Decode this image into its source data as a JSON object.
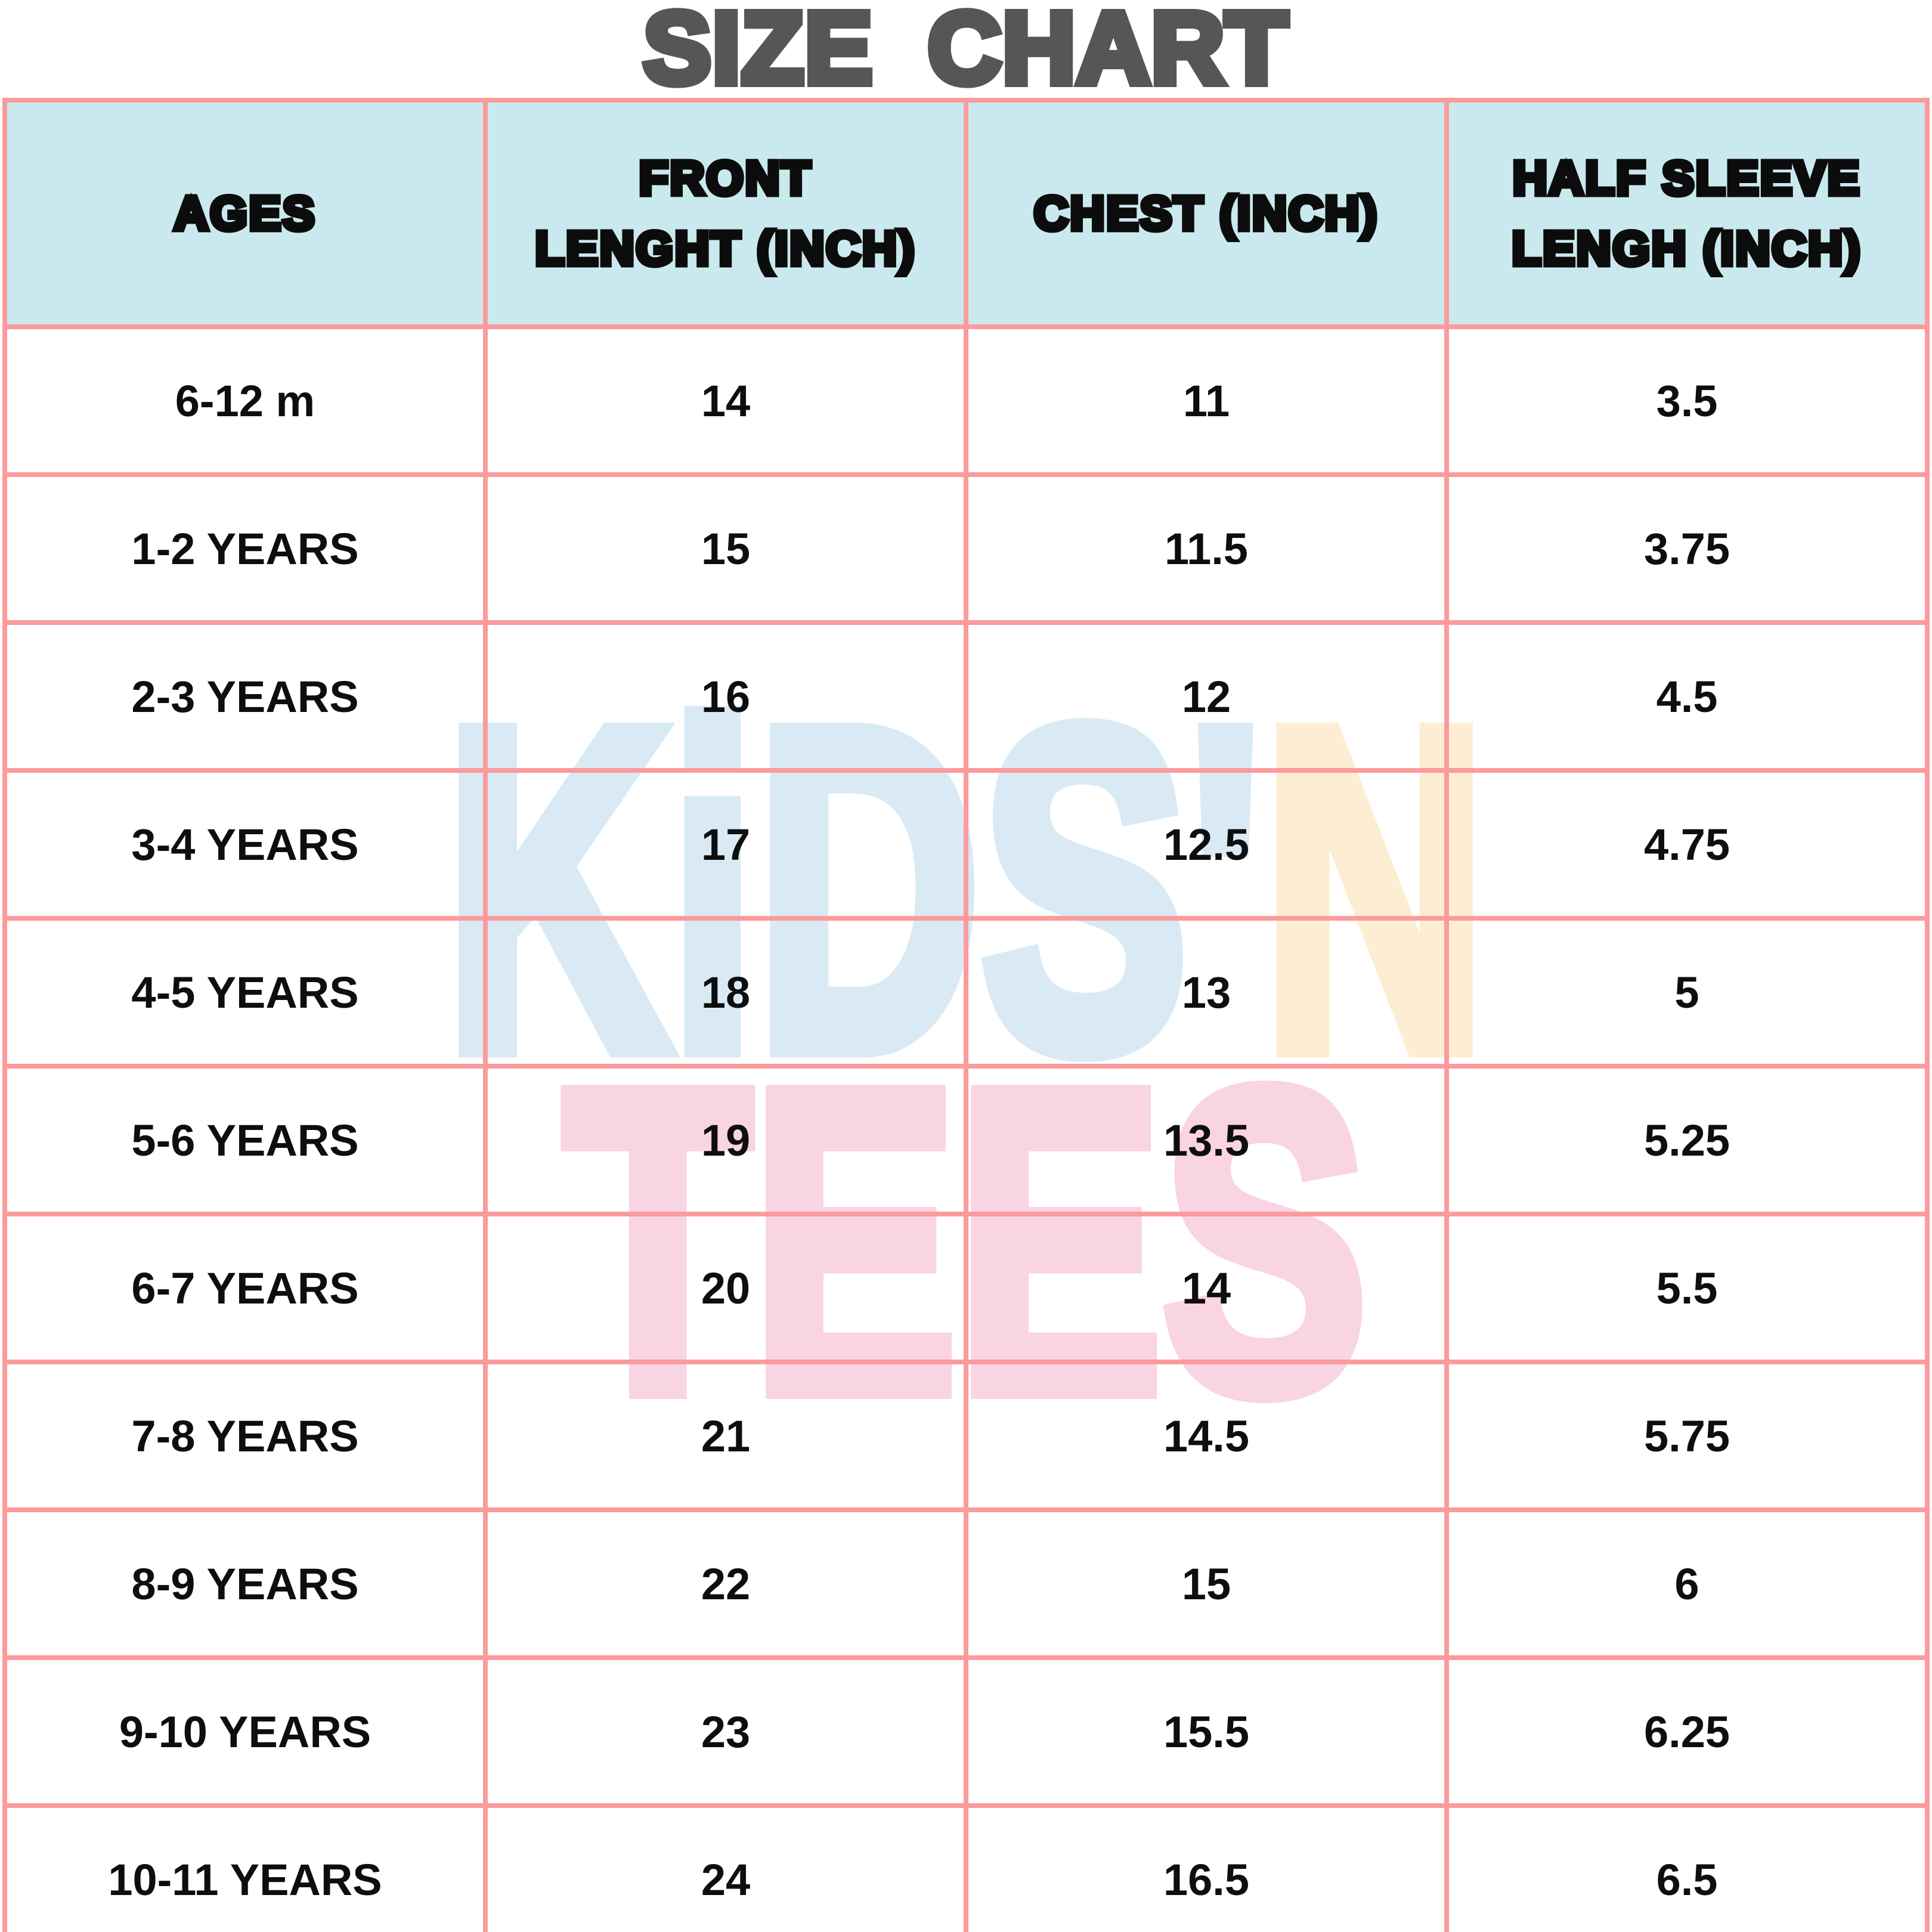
{
  "title": "SIZE CHART",
  "watermark": {
    "part1": "KiDS'",
    "part2": "N",
    "part3": "TEES"
  },
  "colors": {
    "border_pink": "#fb9b9d",
    "header_bg": "#cae9ee",
    "title_gray": "#565658",
    "text_ink": "#0e0e0e",
    "watermark_blue": "#d9eaf5",
    "watermark_peach": "#fdeed3",
    "watermark_pink": "#f9d4e2"
  },
  "table": {
    "headers": [
      "AGES",
      "FRONT LENGHT (INCH)",
      "CHEST (INCH)",
      "HALF SLEEVE LENGH (INCH)"
    ],
    "rows": [
      {
        "age": "6-12 m",
        "front_length": "14",
        "chest": "11",
        "half_sleeve": "3.5"
      },
      {
        "age": "1-2 YEARS",
        "front_length": "15",
        "chest": "11.5",
        "half_sleeve": "3.75"
      },
      {
        "age": "2-3 YEARS",
        "front_length": "16",
        "chest": "12",
        "half_sleeve": "4.5"
      },
      {
        "age": "3-4 YEARS",
        "front_length": "17",
        "chest": "12.5",
        "half_sleeve": "4.75"
      },
      {
        "age": "4-5 YEARS",
        "front_length": "18",
        "chest": "13",
        "half_sleeve": "5"
      },
      {
        "age": "5-6 YEARS",
        "front_length": "19",
        "chest": "13.5",
        "half_sleeve": "5.25"
      },
      {
        "age": "6-7 YEARS",
        "front_length": "20",
        "chest": "14",
        "half_sleeve": "5.5"
      },
      {
        "age": "7-8 YEARS",
        "front_length": "21",
        "chest": "14.5",
        "half_sleeve": "5.75"
      },
      {
        "age": "8-9 YEARS",
        "front_length": "22",
        "chest": "15",
        "half_sleeve": "6"
      },
      {
        "age": "9-10 YEARS",
        "front_length": "23",
        "chest": "15.5",
        "half_sleeve": "6.25"
      },
      {
        "age": "10-11 YEARS",
        "front_length": "24",
        "chest": "16.5",
        "half_sleeve": "6.5"
      }
    ]
  },
  "chart_data": {
    "type": "table",
    "title": "SIZE CHART",
    "columns": [
      "AGES",
      "FRONT LENGHT (INCH)",
      "CHEST (INCH)",
      "HALF SLEEVE LENGH (INCH)"
    ],
    "rows": [
      [
        "6-12 m",
        14,
        11,
        3.5
      ],
      [
        "1-2 YEARS",
        15,
        11.5,
        3.75
      ],
      [
        "2-3 YEARS",
        16,
        12,
        4.5
      ],
      [
        "3-4 YEARS",
        17,
        12.5,
        4.75
      ],
      [
        "4-5 YEARS",
        18,
        13,
        5
      ],
      [
        "5-6 YEARS",
        19,
        13.5,
        5.25
      ],
      [
        "6-7 YEARS",
        20,
        14,
        5.5
      ],
      [
        "7-8 YEARS",
        21,
        14.5,
        5.75
      ],
      [
        "8-9 YEARS",
        22,
        15,
        6
      ],
      [
        "9-10 YEARS",
        23,
        15.5,
        6.25
      ],
      [
        "10-11 YEARS",
        24,
        16.5,
        6.5
      ]
    ]
  }
}
